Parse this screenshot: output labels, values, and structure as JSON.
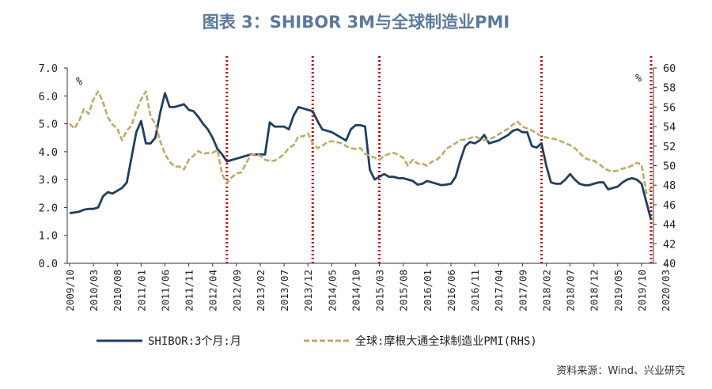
{
  "title": "图表 3：SHIBOR 3M与全球制造业PMI",
  "source": "资料来源：Wind、兴业研究",
  "chart_data": {
    "type": "line",
    "left_unit": "%",
    "right_unit": "%",
    "left_ticks": [
      "7.0",
      "6.0",
      "5.0",
      "4.0",
      "3.0",
      "2.0",
      "1.0",
      "0.0"
    ],
    "right_ticks": [
      "60",
      "58",
      "56",
      "54",
      "52",
      "50",
      "48",
      "46",
      "44",
      "42",
      "40"
    ],
    "ylim_left": [
      0,
      7
    ],
    "ylim_right": [
      40,
      60
    ],
    "x_tick_labels": [
      "2009/10",
      "2010/03",
      "2010/08",
      "2011/01",
      "2011/06",
      "2011/11",
      "2012/04",
      "2012/09",
      "2013/02",
      "2013/07",
      "2013/12",
      "2014/05",
      "2014/10",
      "2015/03",
      "2015/08",
      "2016/01",
      "2016/06",
      "2016/11",
      "2017/04",
      "2017/09",
      "2018/02",
      "2018/07",
      "2018/12",
      "2019/05",
      "2019/10",
      "2020/03"
    ],
    "vlines": [
      "2012/07",
      "2014/01",
      "2015/03",
      "2018/01",
      "2019/12"
    ],
    "series": [
      {
        "name": "SHIBOR:3个月:月",
        "color": "#1f3f5f",
        "axis": "left",
        "values": [
          1.8,
          1.82,
          1.85,
          1.92,
          1.95,
          1.95,
          2.0,
          2.4,
          2.55,
          2.5,
          2.6,
          2.7,
          2.9,
          3.8,
          4.7,
          5.1,
          4.3,
          4.3,
          4.5,
          5.4,
          6.1,
          5.6,
          5.6,
          5.65,
          5.7,
          5.5,
          5.45,
          5.25,
          5.0,
          4.8,
          4.5,
          4.1,
          3.9,
          3.65,
          3.7,
          3.75,
          3.8,
          3.85,
          3.9,
          3.9,
          3.9,
          3.9,
          5.05,
          4.9,
          4.9,
          4.9,
          4.8,
          5.3,
          5.6,
          5.55,
          5.5,
          5.45,
          5.1,
          4.8,
          4.75,
          4.7,
          4.6,
          4.5,
          4.4,
          4.8,
          4.95,
          4.95,
          4.9,
          3.35,
          3.0,
          3.1,
          3.2,
          3.1,
          3.1,
          3.05,
          3.05,
          3.0,
          2.95,
          2.82,
          2.85,
          2.95,
          2.9,
          2.85,
          2.8,
          2.82,
          2.85,
          3.1,
          3.7,
          4.2,
          4.35,
          4.3,
          4.4,
          4.6,
          4.3,
          4.35,
          4.4,
          4.5,
          4.6,
          4.75,
          4.8,
          4.7,
          4.7,
          4.2,
          4.15,
          4.3,
          3.5,
          2.9,
          2.85,
          2.85,
          3.0,
          3.2,
          3.0,
          2.85,
          2.8,
          2.8,
          2.85,
          2.9,
          2.9,
          2.65,
          2.7,
          2.75,
          2.9,
          3.0,
          3.05,
          3.0,
          2.85,
          2.2,
          1.55
        ]
      },
      {
        "name": "全球:摩根大通全球制造业PMI(RHS)",
        "color": "#c2a86a",
        "axis": "right",
        "values": [
          54.3,
          53.8,
          54.6,
          55.8,
          55.3,
          56.8,
          57.6,
          56.5,
          55.0,
          54.2,
          53.8,
          52.6,
          53.6,
          54.1,
          55.6,
          56.8,
          57.6,
          55.0,
          54.3,
          52.5,
          51.2,
          50.4,
          49.9,
          49.9,
          49.6,
          50.6,
          51.0,
          51.5,
          51.2,
          51.3,
          51.3,
          51.6,
          49.1,
          48.2,
          48.8,
          49.2,
          49.3,
          50.2,
          51.1,
          51.2,
          51.0,
          50.6,
          50.5,
          50.5,
          50.8,
          51.2,
          51.8,
          52.1,
          53.0,
          53.0,
          53.3,
          52.3,
          51.8,
          52.0,
          52.4,
          52.5,
          52.4,
          52.3,
          52.0,
          51.8,
          51.7,
          51.8,
          51.2,
          51.0,
          50.8,
          50.6,
          51.0,
          51.2,
          51.3,
          51.1,
          50.8,
          50.0,
          50.6,
          50.2,
          50.2,
          50.0,
          50.4,
          50.6,
          51.0,
          51.7,
          52.0,
          52.3,
          52.6,
          52.7,
          52.8,
          53.0,
          52.8,
          52.6,
          52.7,
          52.9,
          53.2,
          53.5,
          53.8,
          54.2,
          54.5,
          54.0,
          53.8,
          53.6,
          53.3,
          53.0,
          52.9,
          52.8,
          52.7,
          52.5,
          52.3,
          52.1,
          51.8,
          51.3,
          50.8,
          50.6,
          50.5,
          50.2,
          49.8,
          49.5,
          49.4,
          49.5,
          49.7,
          49.8,
          50.0,
          50.3,
          50.1,
          47.2,
          47.7
        ]
      }
    ]
  }
}
